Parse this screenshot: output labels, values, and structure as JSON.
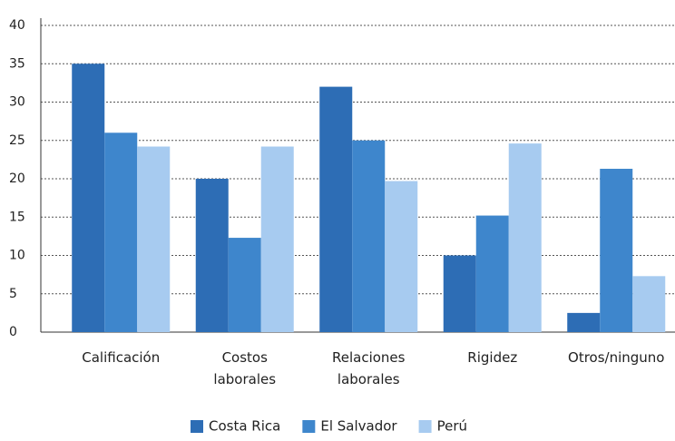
{
  "chart_data": {
    "type": "bar",
    "categories": [
      "Calificación",
      "Costos laborales",
      "Relaciones laborales",
      "Rigidez",
      "Otros/ninguno"
    ],
    "series": [
      {
        "name": "Costa Rica",
        "color": "#2d6db5",
        "values": [
          35,
          20,
          32,
          10,
          2.5
        ]
      },
      {
        "name": "El Salvador",
        "color": "#3e86cc",
        "values": [
          26,
          12.3,
          25,
          15.2,
          21.3
        ]
      },
      {
        "name": "Perú",
        "color": "#a7cbf0",
        "values": [
          24.2,
          24.2,
          19.7,
          24.6,
          7.3
        ]
      }
    ],
    "ylim": [
      0,
      40
    ],
    "yticks": [
      0,
      5,
      10,
      15,
      20,
      25,
      30,
      35,
      40
    ],
    "grid": true,
    "legend": "bottom"
  }
}
